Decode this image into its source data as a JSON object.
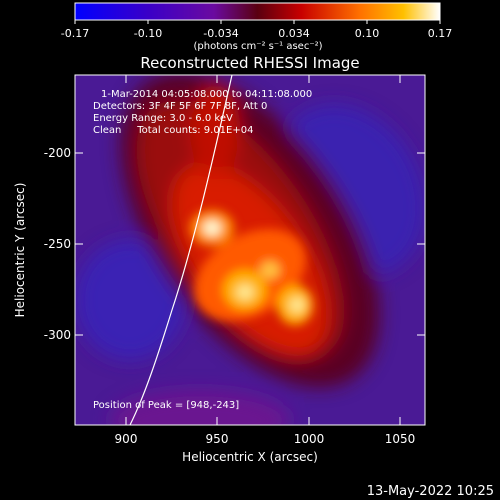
{
  "colorbar": {
    "ticks": [
      "-0.17",
      "-0.10",
      "-0.034",
      "0.034",
      "0.10",
      "0.17"
    ],
    "units": "(photons cm⁻² s⁻¹ asec⁻²)"
  },
  "title": "Reconstructed RHESSI Image",
  "annotations": {
    "time_range": "1-Mar-2014 04:05:08.000 to 04:11:08.000",
    "detectors": "Detectors: 3F 4F 5F 6F 7F 8F, Att 0",
    "energy": "Energy Range: 3.0 - 6.0 keV",
    "clean": "Clean     Total counts: 9.01E+04",
    "peak": "Position of Peak = [948,-243]"
  },
  "axes": {
    "xlabel": "Heliocentric X (arcsec)",
    "ylabel": "Heliocentric Y (arcsec)",
    "xticks": [
      "900",
      "950",
      "1000",
      "1050"
    ],
    "yticks": [
      "-200",
      "-250",
      "-300"
    ]
  },
  "footer": {
    "date": "13-May-2022 10:25"
  },
  "colors": {
    "background": "#000000",
    "cold": "#3b1fa8",
    "hot": "#fff6a0"
  }
}
